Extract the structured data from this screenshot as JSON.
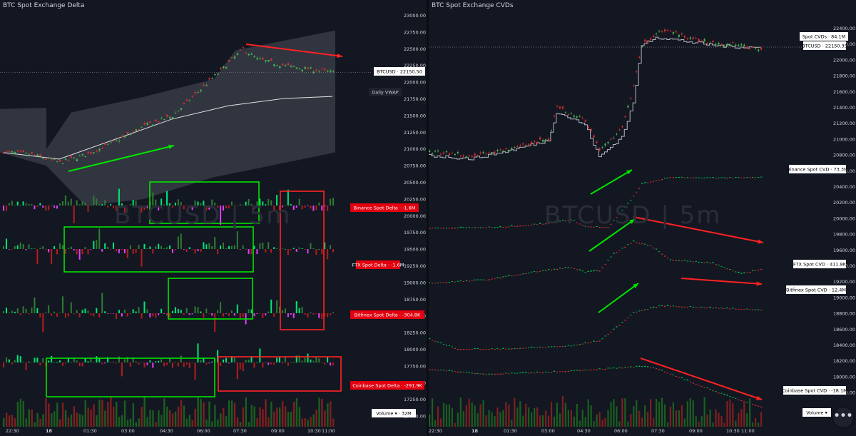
{
  "left": {
    "title": "BTC Spot Exchange Delta",
    "watermark": "BTCUSD | 5m",
    "price_ticks": [
      "23000.00",
      "22750.00",
      "22500.00",
      "22250.00",
      "22000.00",
      "21750.00",
      "21500.00",
      "21250.00",
      "21000.00",
      "20750.00",
      "20500.00",
      "20250.00",
      "20000.00",
      "19750.00",
      "19500.00",
      "19250.00",
      "19000.00",
      "18750.00",
      "18500.00",
      "18250.00",
      "18000.00",
      "17750.00",
      "17500.00",
      "17250.00",
      "17000.00"
    ],
    "time_ticks": [
      "22:30",
      "18",
      "01:30",
      "03:00",
      "04:30",
      "06:00",
      "07:30",
      "09:00",
      "10:30",
      "11:00"
    ],
    "labels": {
      "btcusd": "BTCUSD · 22150.50",
      "vwap": "Daily VWAP",
      "binance": "Binance Spot Delta · -1.6M",
      "ftx": "FTX Spot Delta · -1.6M",
      "bitfinex": "Bitfinex Spot Delta · -304.8K",
      "coinbase": "Coinbase Spot Delta · -291.9K",
      "volume": "Volume ▾ · 32M"
    }
  },
  "right": {
    "title": "BTC Spot Exchange CVDs",
    "watermark": "BTCUSD | 5m",
    "price_ticks": [
      "22400.00",
      "22200.00",
      "22000.00",
      "21800.00",
      "21600.00",
      "21400.00",
      "21200.00",
      "21000.00",
      "20800.00",
      "20600.00",
      "20400.00",
      "20200.00",
      "20000.00",
      "19800.00",
      "19600.00",
      "19400.00",
      "19200.00",
      "19000.00",
      "18800.00",
      "18600.00",
      "18400.00",
      "18200.00",
      "18000.00",
      "17800.00"
    ],
    "time_ticks": [
      "22:30",
      "18",
      "01:30",
      "03:00",
      "04:30",
      "06:00",
      "07:30",
      "09:00",
      "10:30",
      "11:00"
    ],
    "labels": {
      "spot_cvds": "Spot CVDs · 84.1M",
      "btcusd": "BTCUSD · 22150.35",
      "binance": "Binance Spot CVD · 73.3M",
      "ftx": "FTX Spot CVD · 411.8K",
      "bitfinex": "Bitfinex Spot CVD · 12.4M",
      "coinbase": "Coinbase Spot CVD · -18.1M",
      "volume": "Volume ▾"
    }
  },
  "colors": {
    "bg": "#131722",
    "up": "#26a69a",
    "green": "#00e400",
    "red": "#ff2222",
    "candle_red": "#d32f2f",
    "magenta": "#e040fb",
    "label_red": "#e3000f",
    "band": "#4a4e5a"
  },
  "fab_icon": "more-dots-icon",
  "chart_data": [
    {
      "type": "candlestick",
      "title": "BTC Spot Exchange Delta",
      "instrument": "BTCUSD 5m",
      "ylim": [
        17000,
        23000
      ],
      "price_path": [
        [
          0,
          20960
        ],
        [
          10,
          20920
        ],
        [
          20,
          20800
        ],
        [
          25,
          20860
        ],
        [
          30,
          20930
        ],
        [
          40,
          21120
        ],
        [
          50,
          21350
        ],
        [
          60,
          21500
        ],
        [
          70,
          21900
        ],
        [
          80,
          22300
        ],
        [
          85,
          22500
        ],
        [
          90,
          22350
        ],
        [
          100,
          22250
        ],
        [
          110,
          22190
        ],
        [
          117,
          22150.5
        ]
      ],
      "vwap_path": [
        [
          0,
          20950
        ],
        [
          20,
          20850
        ],
        [
          40,
          21150
        ],
        [
          60,
          21450
        ],
        [
          80,
          21650
        ],
        [
          100,
          21760
        ],
        [
          117,
          21790
        ]
      ],
      "series": [
        {
          "name": "Binance Spot Delta",
          "last": "-1.6M"
        },
        {
          "name": "FTX Spot Delta",
          "last": "-1.6M"
        },
        {
          "name": "Bitfinex Spot Delta",
          "last": "-304.8K"
        },
        {
          "name": "Coinbase Spot Delta",
          "last": "-291.9K"
        },
        {
          "name": "Volume",
          "last": "32M"
        }
      ],
      "last_price": 22150.5
    },
    {
      "type": "line",
      "title": "BTC Spot Exchange CVDs",
      "ylim": [
        17800,
        22500
      ],
      "series": [
        {
          "name": "Spot CVDs",
          "last": "84.1M",
          "path": [
            [
              0,
              20880
            ],
            [
              15,
              20840
            ],
            [
              30,
              20950
            ],
            [
              42,
              21060
            ],
            [
              45,
              21400
            ],
            [
              55,
              21250
            ],
            [
              60,
              20860
            ],
            [
              68,
              21100
            ],
            [
              72,
              21500
            ],
            [
              75,
              22200
            ],
            [
              80,
              22300
            ],
            [
              90,
              22250
            ],
            [
              100,
              22200
            ],
            [
              110,
              22180
            ],
            [
              117,
              22170
            ]
          ]
        },
        {
          "name": "Binance Spot CVD",
          "last": "73.3M",
          "path": [
            [
              0,
              20010
            ],
            [
              25,
              20020
            ],
            [
              40,
              20060
            ],
            [
              50,
              20110
            ],
            [
              55,
              20030
            ],
            [
              63,
              20020
            ],
            [
              70,
              20300
            ],
            [
              75,
              20540
            ],
            [
              85,
              20620
            ],
            [
              100,
              20610
            ],
            [
              117,
              20620
            ]
          ]
        },
        {
          "name": "FTX Spot CVD",
          "last": "411.8K",
          "path": [
            [
              0,
              19350
            ],
            [
              20,
              19390
            ],
            [
              40,
              19500
            ],
            [
              50,
              19540
            ],
            [
              55,
              19480
            ],
            [
              60,
              19500
            ],
            [
              65,
              19700
            ],
            [
              72,
              19850
            ],
            [
              78,
              19800
            ],
            [
              85,
              19630
            ],
            [
              100,
              19590
            ],
            [
              110,
              19460
            ],
            [
              117,
              19520
            ]
          ]
        },
        {
          "name": "Bitfinex Spot CVD",
          "last": "12.4M",
          "path": [
            [
              0,
              18680
            ],
            [
              10,
              18560
            ],
            [
              25,
              18560
            ],
            [
              50,
              18600
            ],
            [
              60,
              18660
            ],
            [
              66,
              18820
            ],
            [
              72,
              19000
            ],
            [
              82,
              19080
            ],
            [
              95,
              19060
            ],
            [
              117,
              19030
            ]
          ]
        },
        {
          "name": "Coinbase Spot CVD",
          "last": "-18.1M",
          "path": [
            [
              0,
              18320
            ],
            [
              20,
              18260
            ],
            [
              40,
              18280
            ],
            [
              60,
              18320
            ],
            [
              75,
              18350
            ],
            [
              80,
              18330
            ],
            [
              95,
              18130
            ],
            [
              105,
              18000
            ],
            [
              117,
              17870
            ]
          ]
        }
      ],
      "last_price": 22150.35
    }
  ]
}
